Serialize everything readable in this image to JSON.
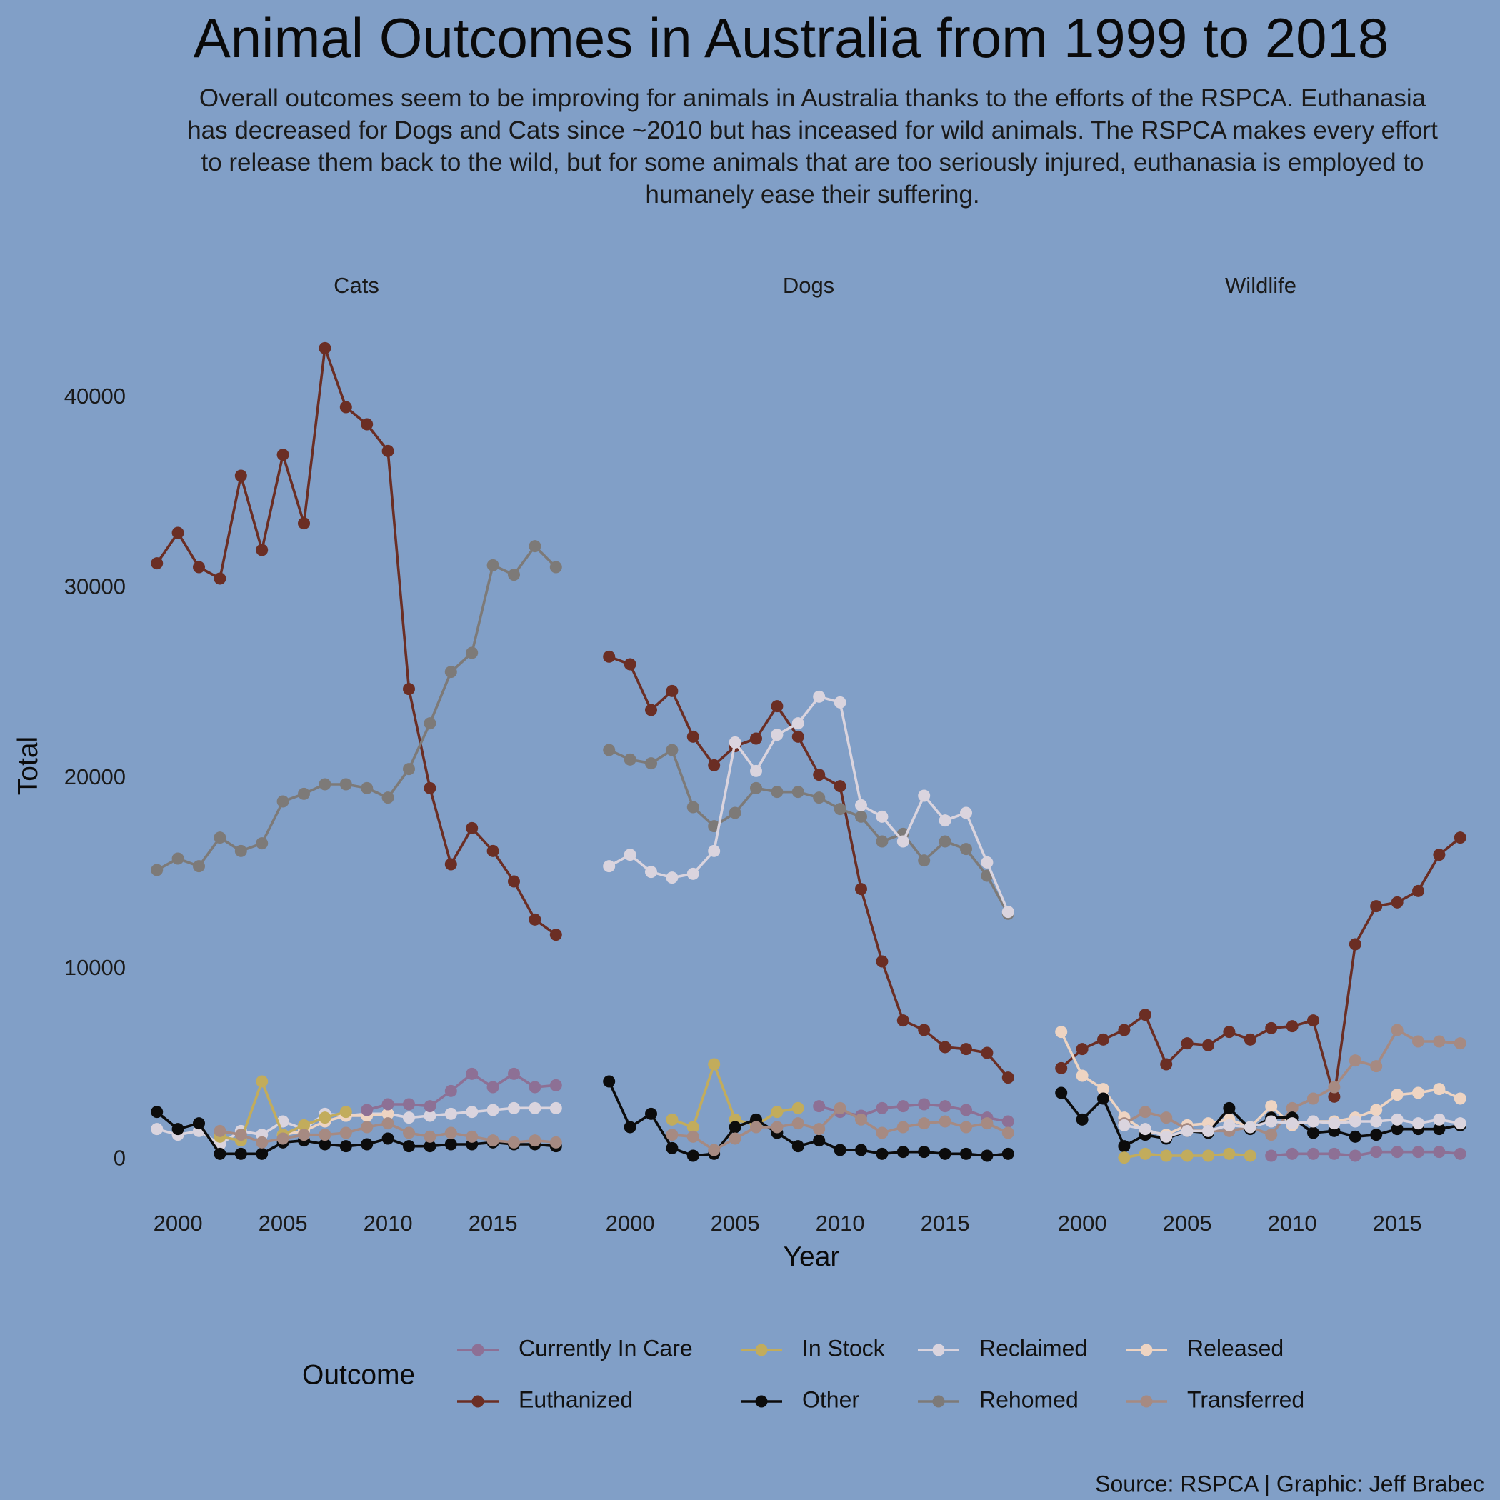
{
  "title": "Animal Outcomes in Australia from 1999 to 2018",
  "subtitle": "Overall outcomes seem to be improving for animals in Australia thanks to the efforts of the RSPCA. Euthanasia has decreased for Dogs and Cats since ~2010 but has inceased for wild animals. The RSPCA makes every effort to release them back to the wild, but for some animals that are too seriously injured, euthanasia is employed to humanely ease their suffering.",
  "caption": "Source: RSPCA | Graphic: Jeff Brabec",
  "colors": {
    "background": "#819fc7",
    "Currently In Care": "#8d7095",
    "Euthanized": "#6b2e24",
    "In Stock": "#c2ac5c",
    "Other": "#0c0c0c",
    "Reclaimed": "#dad4de",
    "Rehomed": "#7d7a78",
    "Released": "#eed4c2",
    "Transferred": "#a68a82"
  },
  "chart_data": {
    "type": "line",
    "xlabel": "Year",
    "ylabel": "Total",
    "xlim": [
      1998.5,
      2018.5
    ],
    "ylim": [
      -2500,
      44000
    ],
    "x_ticks": [
      2000,
      2005,
      2010,
      2015
    ],
    "y_ticks": [
      0,
      10000,
      20000,
      30000,
      40000
    ],
    "grid": false,
    "legend": {
      "title": "Outcome",
      "position": "bottom"
    },
    "legend_entries": [
      "Currently In Care",
      "Euthanized",
      "In Stock",
      "Other",
      "Reclaimed",
      "Rehomed",
      "Released",
      "Transferred"
    ],
    "panels": [
      {
        "name": "Cats",
        "series": [
          {
            "name": "Euthanized",
            "x": [
              1999,
              2000,
              2001,
              2002,
              2003,
              2004,
              2005,
              2006,
              2007,
              2008,
              2009,
              2010,
              2011,
              2012,
              2013,
              2014,
              2015,
              2016,
              2017,
              2018
            ],
            "values": [
              31300,
              32900,
              31100,
              30500,
              35900,
              32000,
              37000,
              33400,
              42600,
              39500,
              38600,
              37200,
              24700,
              19500,
              15500,
              17400,
              16200,
              14600,
              12600,
              11800
            ]
          },
          {
            "name": "Rehomed",
            "x": [
              1999,
              2000,
              2001,
              2002,
              2003,
              2004,
              2005,
              2006,
              2007,
              2008,
              2009,
              2010,
              2011,
              2012,
              2013,
              2014,
              2015,
              2016,
              2017,
              2018
            ],
            "values": [
              15200,
              15800,
              15400,
              16900,
              16200,
              16600,
              18800,
              19200,
              19700,
              19700,
              19500,
              19000,
              20500,
              22900,
              25600,
              26600,
              31200,
              30700,
              32200,
              31100
            ]
          },
          {
            "name": "Reclaimed",
            "x": [
              1999,
              2000,
              2001,
              2002,
              2003,
              2004,
              2005,
              2006,
              2007,
              2008,
              2009,
              2010,
              2011,
              2012,
              2013,
              2014,
              2015,
              2016,
              2017,
              2018
            ],
            "values": [
              1600,
              1300,
              1500,
              800,
              1500,
              1300,
              2000,
              1600,
              2400,
              2300,
              2400,
              2400,
              2200,
              2300,
              2400,
              2500,
              2600,
              2700,
              2700,
              2700
            ]
          },
          {
            "name": "Released",
            "x": [
              2005,
              2006,
              2007,
              2008,
              2009,
              2010
            ],
            "values": [
              1300,
              1500,
              2000,
              2300,
              2300,
              2400
            ]
          },
          {
            "name": "Currently In Care",
            "x": [
              2009,
              2010,
              2011,
              2012,
              2013,
              2014,
              2015,
              2016,
              2017,
              2018
            ],
            "values": [
              2600,
              2900,
              2900,
              2800,
              3600,
              4500,
              3800,
              4500,
              3800,
              3900
            ]
          },
          {
            "name": "In Stock",
            "x": [
              2002,
              2003,
              2004,
              2005,
              2006,
              2007,
              2008
            ],
            "values": [
              1200,
              1000,
              4100,
              1300,
              1800,
              2200,
              2500
            ]
          },
          {
            "name": "Other",
            "x": [
              1999,
              2000,
              2001,
              2002,
              2003,
              2004,
              2005,
              2006,
              2007,
              2008,
              2009,
              2010,
              2011,
              2012,
              2013,
              2014,
              2015,
              2016,
              2017,
              2018
            ],
            "values": [
              2500,
              1600,
              1900,
              300,
              300,
              300,
              900,
              1000,
              800,
              700,
              800,
              1100,
              700,
              700,
              800,
              800,
              900,
              800,
              800,
              700
            ]
          },
          {
            "name": "Transferred",
            "x": [
              2002,
              2003,
              2004,
              2005,
              2006,
              2007,
              2008,
              2009,
              2010,
              2011,
              2012,
              2013,
              2014,
              2015,
              2016,
              2017,
              2018
            ],
            "values": [
              1500,
              1300,
              900,
              1100,
              1300,
              1300,
              1400,
              1700,
              1900,
              1400,
              1200,
              1400,
              1200,
              1000,
              900,
              1000,
              900
            ]
          }
        ]
      },
      {
        "name": "Dogs",
        "series": [
          {
            "name": "Euthanized",
            "x": [
              1999,
              2000,
              2001,
              2002,
              2003,
              2004,
              2005,
              2006,
              2007,
              2008,
              2009,
              2010,
              2011,
              2012,
              2013,
              2014,
              2015,
              2016,
              2017,
              2018
            ],
            "values": [
              26400,
              26000,
              23600,
              24600,
              22200,
              20700,
              21700,
              22100,
              23800,
              22200,
              20200,
              19600,
              14200,
              10400,
              7300,
              6800,
              5900,
              5800,
              5600,
              4300
            ]
          },
          {
            "name": "Rehomed",
            "x": [
              1999,
              2000,
              2001,
              2002,
              2003,
              2004,
              2005,
              2006,
              2007,
              2008,
              2009,
              2010,
              2011,
              2012,
              2013,
              2014,
              2015,
              2016,
              2017,
              2018
            ],
            "values": [
              21500,
              21000,
              20800,
              21500,
              18500,
              17500,
              18200,
              19500,
              19300,
              19300,
              19000,
              18400,
              18000,
              16700,
              17100,
              15700,
              16700,
              16300,
              14900,
              12900
            ]
          },
          {
            "name": "Reclaimed",
            "x": [
              1999,
              2000,
              2001,
              2002,
              2003,
              2004,
              2005,
              2006,
              2007,
              2008,
              2009,
              2010,
              2011,
              2012,
              2013,
              2014,
              2015,
              2016,
              2017,
              2018
            ],
            "values": [
              15400,
              16000,
              15100,
              14800,
              15000,
              16200,
              21900,
              20400,
              22300,
              22900,
              24300,
              24000,
              18600,
              18000,
              16700,
              19100,
              17800,
              18200,
              15600,
              13000
            ]
          },
          {
            "name": "Currently In Care",
            "x": [
              2009,
              2010,
              2011,
              2012,
              2013,
              2014,
              2015,
              2016,
              2017,
              2018
            ],
            "values": [
              2800,
              2500,
              2300,
              2700,
              2800,
              2900,
              2800,
              2600,
              2200,
              2000
            ]
          },
          {
            "name": "In Stock",
            "x": [
              2002,
              2003,
              2004,
              2005,
              2006,
              2007,
              2008
            ],
            "values": [
              2100,
              1700,
              5000,
              2100,
              1800,
              2500,
              2700
            ]
          },
          {
            "name": "Other",
            "x": [
              1999,
              2000,
              2001,
              2002,
              2003,
              2004,
              2005,
              2006,
              2007,
              2008,
              2009,
              2010,
              2011,
              2012,
              2013,
              2014,
              2015,
              2016,
              2017,
              2018
            ],
            "values": [
              4100,
              1700,
              2400,
              600,
              200,
              300,
              1700,
              2100,
              1400,
              700,
              1000,
              500,
              500,
              300,
              400,
              400,
              300,
              300,
              200,
              300
            ]
          },
          {
            "name": "Transferred",
            "x": [
              2002,
              2003,
              2004,
              2005,
              2006,
              2007,
              2008,
              2009,
              2010,
              2011,
              2012,
              2013,
              2014,
              2015,
              2016,
              2017,
              2018
            ],
            "values": [
              1300,
              1200,
              500,
              1100,
              1700,
              1700,
              1900,
              1600,
              2700,
              2100,
              1400,
              1700,
              1900,
              2000,
              1700,
              1900,
              1400
            ]
          }
        ]
      },
      {
        "name": "Wildlife",
        "series": [
          {
            "name": "Euthanized",
            "x": [
              1999,
              2000,
              2001,
              2002,
              2003,
              2004,
              2005,
              2006,
              2007,
              2008,
              2009,
              2010,
              2011,
              2012,
              2013,
              2014,
              2015,
              2016,
              2017,
              2018
            ],
            "values": [
              4800,
              5800,
              6300,
              6800,
              7600,
              5000,
              6100,
              6000,
              6700,
              6300,
              6900,
              7000,
              7300,
              3300,
              11300,
              13300,
              13500,
              14100,
              16000,
              16900
            ]
          },
          {
            "name": "Released",
            "x": [
              1999,
              2000,
              2001,
              2002,
              2003,
              2004,
              2005,
              2006,
              2007,
              2008,
              2009,
              2010,
              2011,
              2012,
              2013,
              2014,
              2015,
              2016,
              2017,
              2018
            ],
            "values": [
              6700,
              4400,
              3700,
              2200,
              1500,
              1300,
              1800,
              1900,
              2100,
              1700,
              2800,
              1800,
              2000,
              2000,
              2200,
              2600,
              3400,
              3500,
              3700,
              3200
            ]
          },
          {
            "name": "Transferred",
            "x": [
              2002,
              2003,
              2004,
              2005,
              2006,
              2007,
              2008,
              2009,
              2010,
              2011,
              2012,
              2013,
              2014,
              2015,
              2016,
              2017,
              2018
            ],
            "values": [
              1900,
              2500,
              2200,
              1600,
              1500,
              1500,
              1700,
              1300,
              2700,
              3200,
              3800,
              5200,
              4900,
              6800,
              6200,
              6200,
              6100
            ]
          },
          {
            "name": "Other",
            "x": [
              1999,
              2000,
              2001,
              2002,
              2003,
              2004,
              2005,
              2006,
              2007,
              2008,
              2009,
              2010,
              2011,
              2012,
              2013,
              2014,
              2015,
              2016,
              2017,
              2018
            ],
            "values": [
              3500,
              2100,
              3200,
              700,
              1300,
              1100,
              1500,
              1400,
              2700,
              1600,
              2200,
              2200,
              1400,
              1500,
              1200,
              1300,
              1600,
              1600,
              1600,
              1800
            ]
          },
          {
            "name": "Reclaimed",
            "x": [
              2002,
              2003,
              2004,
              2005,
              2006,
              2007,
              2008,
              2009,
              2010,
              2011,
              2012,
              2013,
              2014,
              2015,
              2016,
              2017,
              2018
            ],
            "values": [
              1800,
              1600,
              1200,
              1500,
              1500,
              1800,
              1700,
              2000,
              1900,
              2000,
              1900,
              2000,
              2000,
              2100,
              1900,
              2100,
              1900
            ]
          },
          {
            "name": "In Stock",
            "x": [
              2002,
              2003,
              2004,
              2005,
              2006,
              2007,
              2008
            ],
            "values": [
              100,
              300,
              200,
              200,
              200,
              300,
              200
            ]
          },
          {
            "name": "Currently In Care",
            "x": [
              2009,
              2010,
              2011,
              2012,
              2013,
              2014,
              2015,
              2016,
              2017,
              2018
            ],
            "values": [
              200,
              300,
              300,
              300,
              200,
              400,
              400,
              400,
              400,
              300
            ]
          }
        ]
      }
    ]
  }
}
